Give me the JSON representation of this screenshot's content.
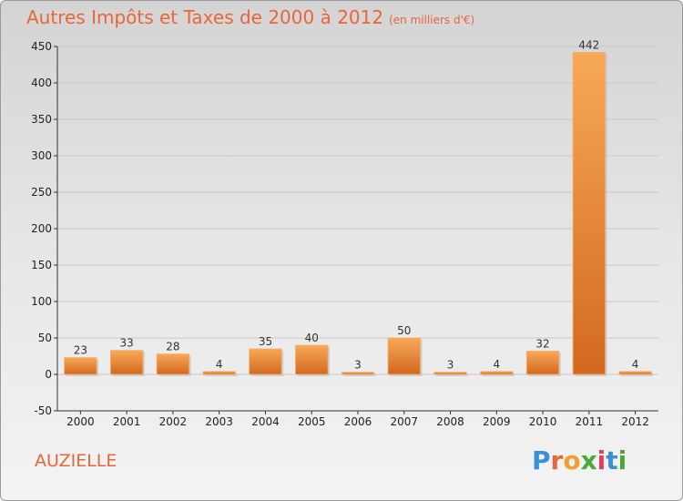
{
  "chart_data": {
    "type": "bar",
    "title": "Autres Impôts et Taxes de 2000 à 2012",
    "subtitle": "(en milliers d'€)",
    "categories": [
      "2000",
      "2001",
      "2002",
      "2003",
      "2004",
      "2005",
      "2006",
      "2007",
      "2008",
      "2009",
      "2010",
      "2011",
      "2012"
    ],
    "values": [
      23,
      33,
      28,
      4,
      35,
      40,
      3,
      50,
      3,
      4,
      32,
      442,
      4
    ],
    "ylim": [
      -50,
      450
    ],
    "yticks": [
      -50,
      0,
      50,
      100,
      150,
      200,
      250,
      300,
      350,
      400,
      450
    ],
    "grid": true,
    "bar_color": "#f0923e"
  },
  "footer": {
    "commune": "AUZIELLE"
  },
  "logo": {
    "letters": [
      "P",
      "r",
      "o",
      "x",
      "i",
      "t",
      "i"
    ],
    "colors": [
      "#3a8fd6",
      "#e8663a",
      "#f0a030",
      "#4aa838",
      "#e04060",
      "#3a8fd6",
      "#4aa838"
    ]
  }
}
